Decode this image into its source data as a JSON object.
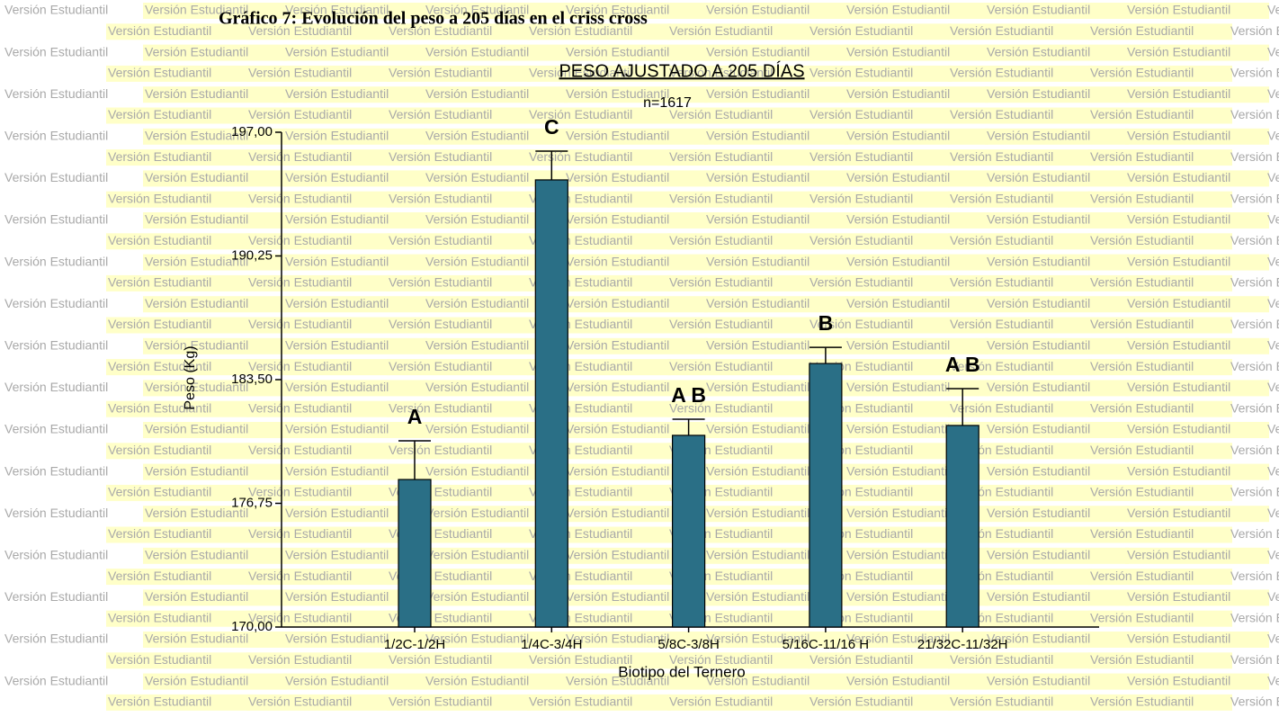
{
  "watermark": "Versión Estudiantil",
  "caption": "Gráfico 7: Evolución del peso a 205 días en el criss cross",
  "chart_data": {
    "type": "bar",
    "title": "PESO AJUSTADO A 205 DÍAS",
    "subtitle": "n=1617",
    "y_label": "Peso (Kg)",
    "x_label": "Biotipo del Ternero",
    "categories": [
      "1/2C-1/2H",
      "1/4C-3/4H",
      "5/8C-3/8H",
      "5/16C-11/16 H",
      "21/32C-11/32H"
    ],
    "values": [
      178.05,
      194.4,
      180.46,
      184.38,
      181.0
    ],
    "errors": [
      2.11,
      1.57,
      0.88,
      0.88,
      2.01
    ],
    "annotations": [
      "A",
      "C",
      "A B",
      "B",
      "A B"
    ],
    "color": "#2a6f86",
    "ylim": [
      170,
      197
    ],
    "yticks": [
      {
        "value": 170,
        "label": "170,00"
      },
      {
        "value": 176.75,
        "label": "176,75"
      },
      {
        "value": 183.5,
        "label": "183,50"
      },
      {
        "value": 190.25,
        "label": "190,25"
      },
      {
        "value": 197,
        "label": "197,00"
      }
    ],
    "grid": false
  }
}
